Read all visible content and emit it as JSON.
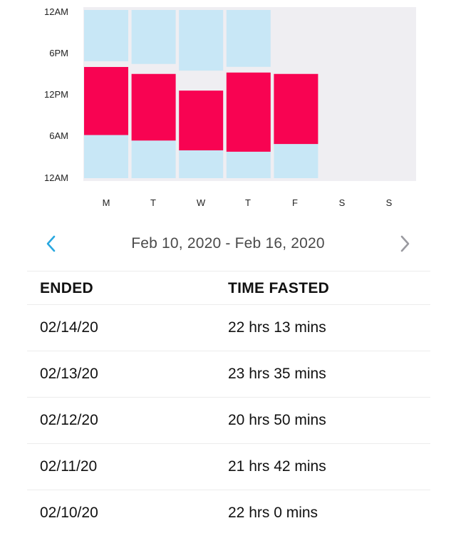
{
  "chart_data": {
    "type": "bar",
    "categories": [
      "M",
      "T",
      "W",
      "T",
      "F",
      "S",
      "S"
    ],
    "y_tick_labels": [
      "12AM",
      "6PM",
      "12PM",
      "6AM",
      "12AM"
    ],
    "ylim_hours": [
      0,
      24
    ],
    "series": [
      {
        "values": [
          {
            "fast_start_hour": 16.0,
            "fast_end_hour": 6.2
          },
          {
            "fast_start_hour": 15.0,
            "fast_end_hour": 5.4
          },
          {
            "fast_start_hour": 12.6,
            "fast_end_hour": 4.0
          },
          {
            "fast_start_hour": 15.2,
            "fast_end_hour": 3.8
          },
          {
            "fast_start_hour": 15.0,
            "fast_end_hour": 4.9
          },
          null,
          null
        ]
      }
    ],
    "colors": {
      "plot_background": "#efeef2",
      "evening": "#c8e7f6",
      "morning": "#c8e7f6",
      "fast": "#f80352"
    }
  },
  "week": {
    "range_label": "Feb 10, 2020 - Feb 16, 2020",
    "prev_icon": "chevron-left-icon",
    "next_icon": "chevron-right-icon",
    "prev_color": "#29a8e0",
    "next_color": "#9a9aa0"
  },
  "history": {
    "columns": [
      "ENDED",
      "TIME FASTED"
    ],
    "rows": [
      {
        "ended": "02/14/20",
        "time_fasted": "22 hrs 13 mins"
      },
      {
        "ended": "02/13/20",
        "time_fasted": "23 hrs 35 mins"
      },
      {
        "ended": "02/12/20",
        "time_fasted": "20 hrs 50 mins"
      },
      {
        "ended": "02/11/20",
        "time_fasted": "21 hrs 42 mins"
      },
      {
        "ended": "02/10/20",
        "time_fasted": "22 hrs 0 mins"
      }
    ]
  }
}
